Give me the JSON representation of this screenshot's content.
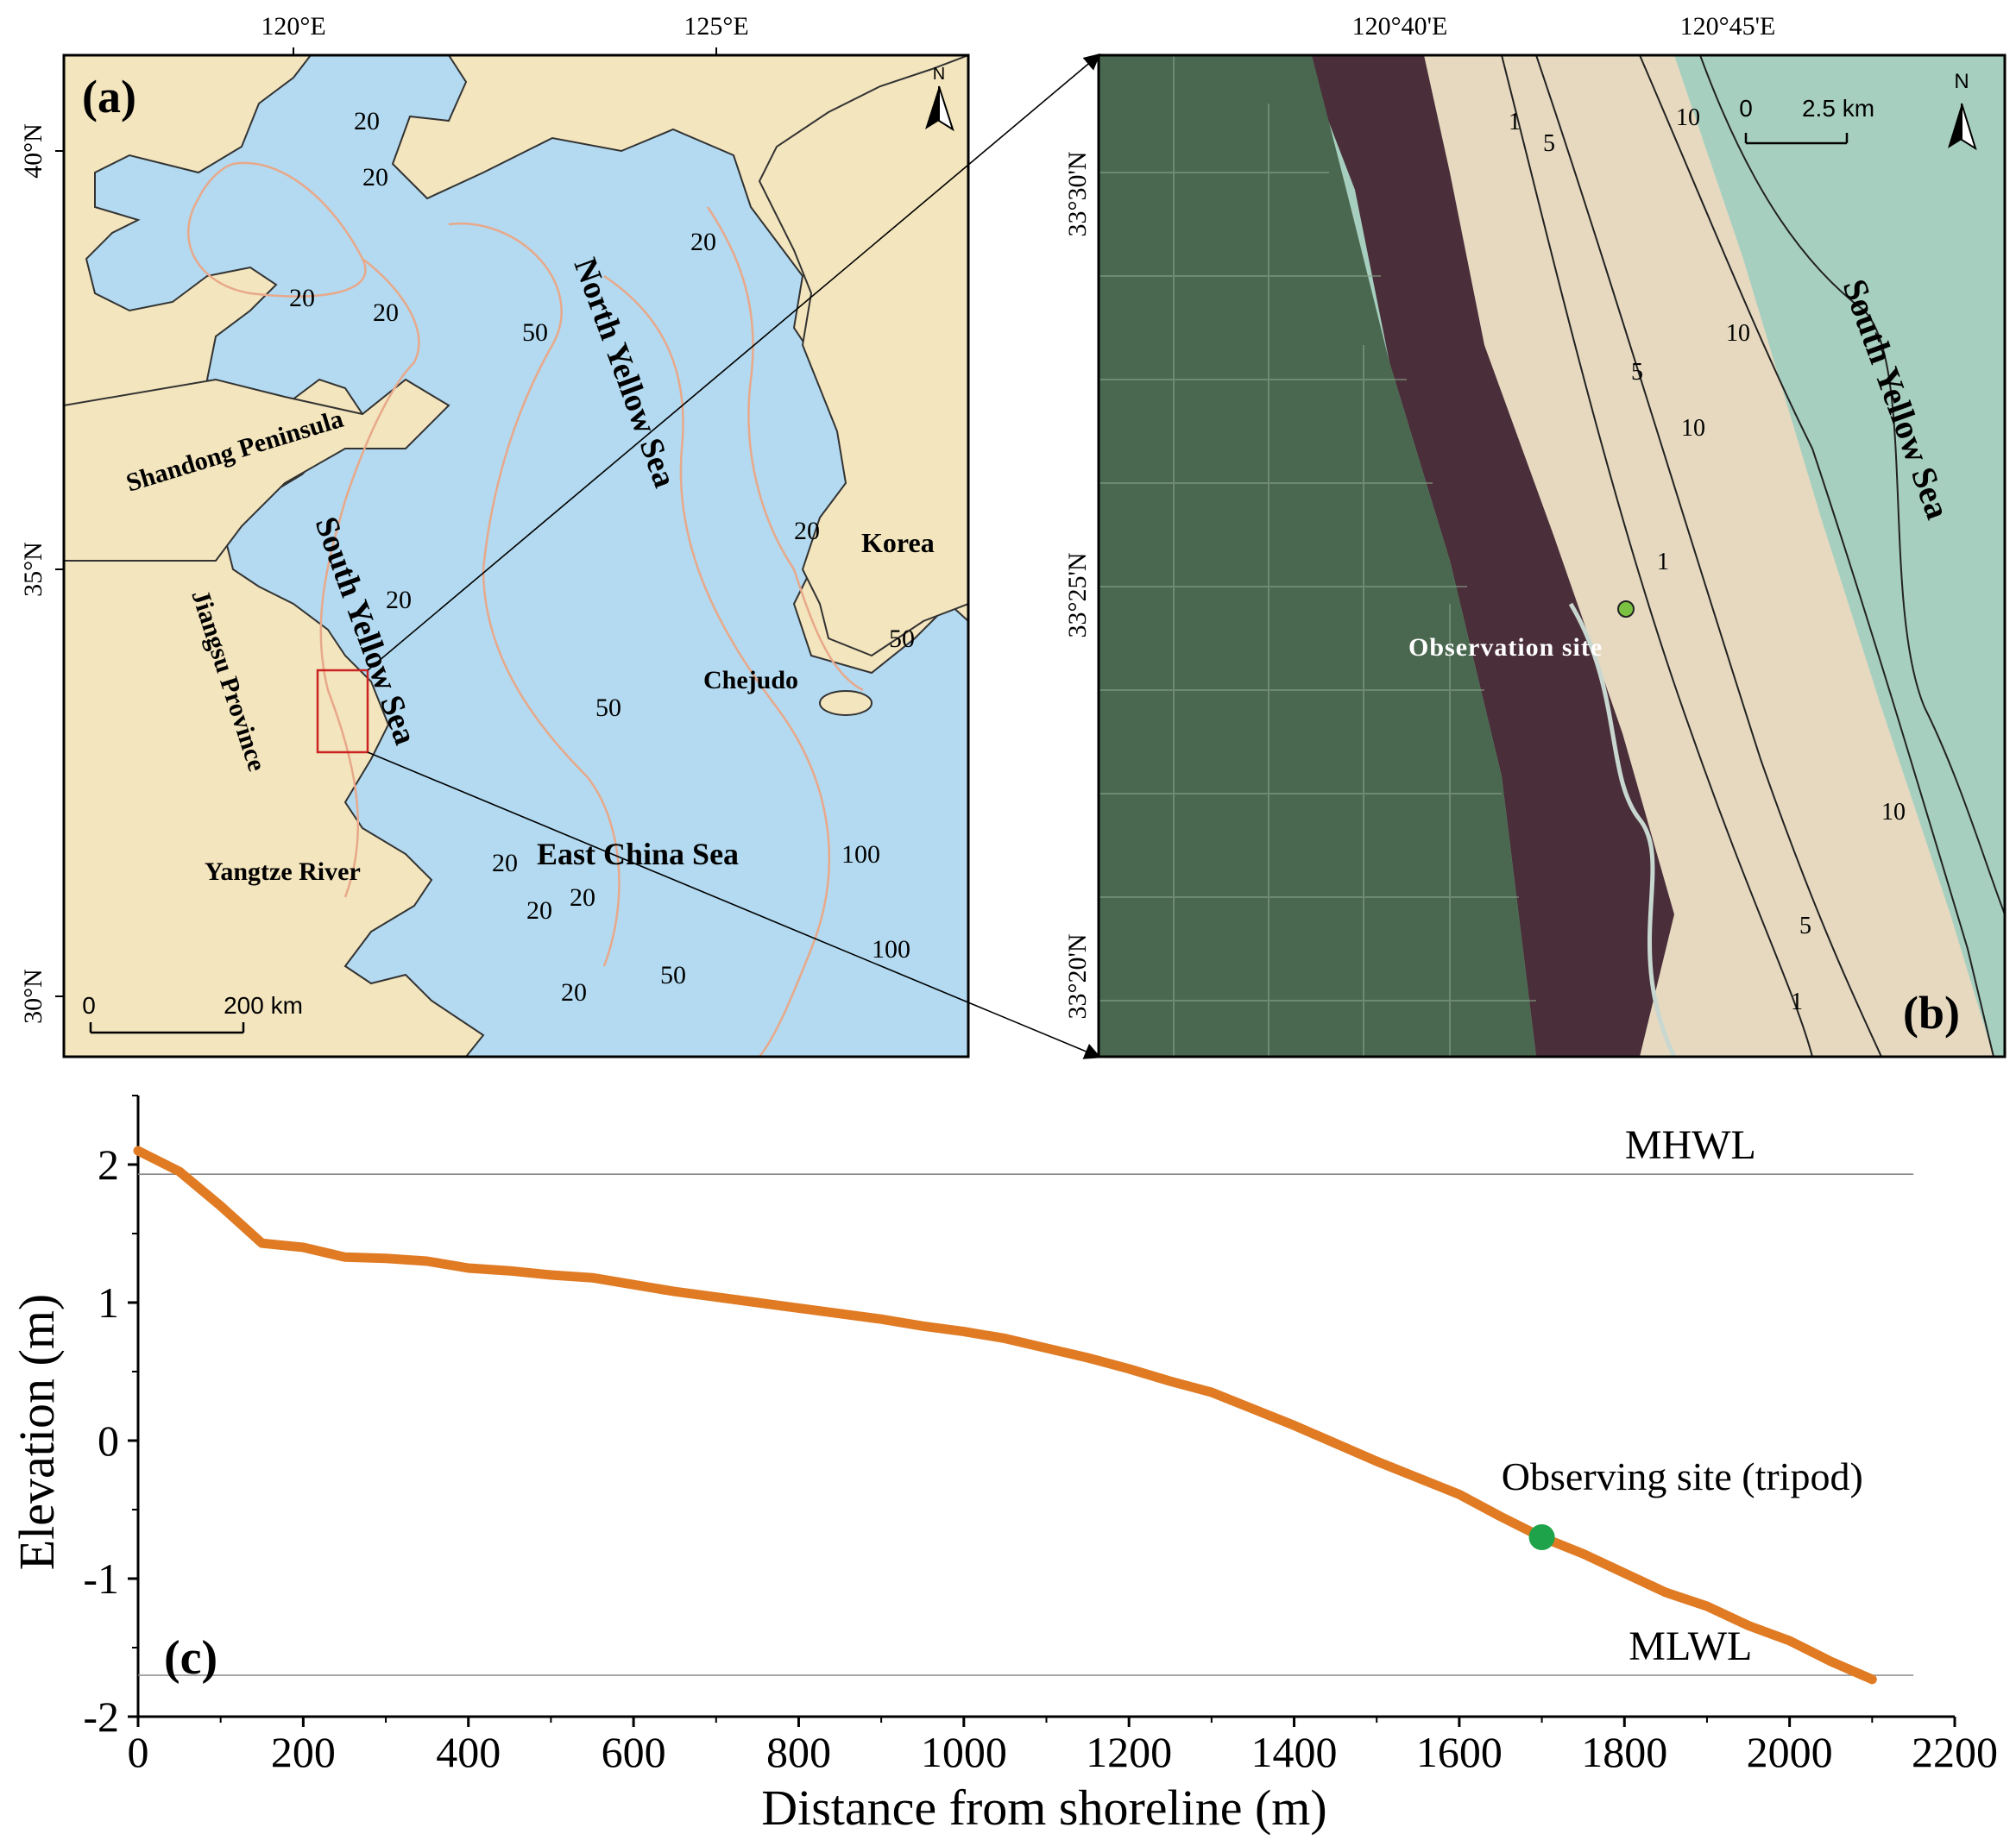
{
  "panel_a": {
    "label": "(a)",
    "lon_ticks": [
      "120°E",
      "125°E"
    ],
    "lat_ticks": [
      "40°N",
      "35°N",
      "30°N"
    ],
    "north_label": "N",
    "scale_zero": "0",
    "scale_max": "200 km",
    "place_labels": {
      "shandong": "Shandong Peninsula",
      "north_yellow_sea": "North Yellow Sea",
      "south_yellow_sea": "South Yellow Sea",
      "jiangsu": "Jiangsu Province",
      "korea": "Korea",
      "chejudo": "Chejudo",
      "yangtze": "Yangtze River",
      "east_china_sea": "East China Sea"
    },
    "isobath_labels": [
      "20",
      "20",
      "20",
      "20",
      "20",
      "20",
      "20",
      "50",
      "50",
      "50",
      "50",
      "20",
      "20",
      "20",
      "20",
      "100",
      "100"
    ],
    "colors": {
      "sea": "#b3daf0",
      "land": "#f3e5bd",
      "isobath": "#e8a88a",
      "study_box": "#cc2222"
    }
  },
  "panel_b": {
    "label": "(b)",
    "lon_ticks": [
      "120°40'E",
      "120°45'E"
    ],
    "lat_ticks": [
      "33°30'N",
      "33°25'N",
      "33°20'N"
    ],
    "north_label": "N",
    "scale_zero": "0",
    "scale_max": "2.5 km",
    "sea_label": "South Yellow Sea",
    "site_label": "Observation site",
    "contour_labels": [
      "1",
      "5",
      "10",
      "10",
      "5",
      "10",
      "1",
      "10",
      "5",
      "1"
    ],
    "colors": {
      "sea": "#a7cfc0",
      "sand": "#e6d9bf",
      "marsh": "#4a2f3a",
      "farmland": "#4a6850",
      "site_dot": "#7bc242"
    }
  },
  "chart_data": {
    "type": "line",
    "panel_label": "(c)",
    "xlabel": "Distance from shoreline (m)",
    "ylabel": "Elevation (m)",
    "xlim": [
      0,
      2200
    ],
    "ylim": [
      -2,
      2.5
    ],
    "x_ticks": [
      "0",
      "200",
      "400",
      "600",
      "800",
      "1000",
      "1200",
      "1400",
      "1600",
      "1800",
      "2000",
      "2200"
    ],
    "y_ticks": [
      "2",
      "1",
      "0",
      "-1",
      "-2"
    ],
    "series": [
      {
        "color": "#e07b24",
        "points": [
          [
            0,
            2.1
          ],
          [
            50,
            1.95
          ],
          [
            100,
            1.7
          ],
          [
            150,
            1.43
          ],
          [
            200,
            1.4
          ],
          [
            250,
            1.33
          ],
          [
            300,
            1.32
          ],
          [
            350,
            1.3
          ],
          [
            400,
            1.25
          ],
          [
            450,
            1.23
          ],
          [
            500,
            1.2
          ],
          [
            550,
            1.18
          ],
          [
            600,
            1.13
          ],
          [
            650,
            1.08
          ],
          [
            700,
            1.04
          ],
          [
            750,
            1.0
          ],
          [
            800,
            0.96
          ],
          [
            850,
            0.92
          ],
          [
            900,
            0.88
          ],
          [
            950,
            0.83
          ],
          [
            1000,
            0.79
          ],
          [
            1050,
            0.74
          ],
          [
            1100,
            0.67
          ],
          [
            1150,
            0.6
          ],
          [
            1200,
            0.52
          ],
          [
            1250,
            0.43
          ],
          [
            1300,
            0.35
          ],
          [
            1350,
            0.23
          ],
          [
            1400,
            0.11
          ],
          [
            1450,
            -0.02
          ],
          [
            1500,
            -0.15
          ],
          [
            1550,
            -0.27
          ],
          [
            1600,
            -0.39
          ],
          [
            1650,
            -0.55
          ],
          [
            1700,
            -0.7
          ],
          [
            1750,
            -0.82
          ],
          [
            1800,
            -0.96
          ],
          [
            1850,
            -1.1
          ],
          [
            1900,
            -1.2
          ],
          [
            1950,
            -1.34
          ],
          [
            2000,
            -1.45
          ],
          [
            2050,
            -1.6
          ],
          [
            2100,
            -1.73
          ]
        ]
      }
    ],
    "reference_lines": [
      {
        "label": "MHWL",
        "y": 1.93
      },
      {
        "label": "MLWL",
        "y": -1.7
      }
    ],
    "marker": {
      "label": "Observing site (tripod)",
      "x": 1700,
      "y": -0.7,
      "color": "#1fa34a"
    }
  }
}
